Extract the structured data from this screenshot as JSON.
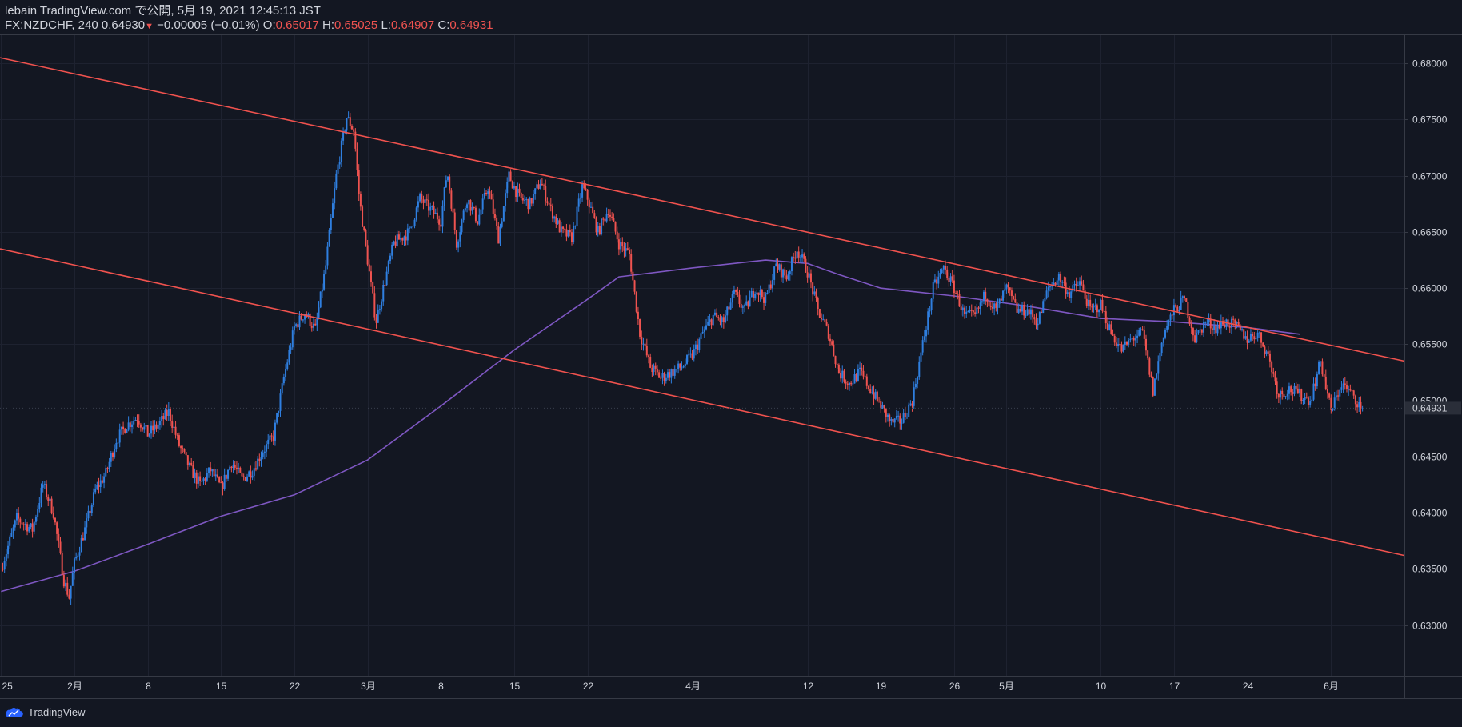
{
  "header": {
    "published": "lebain TradingView.com で公開, 5月 19, 2021 12:45:13 JST",
    "symbol": "FX:NZDCHF, 240",
    "last": "0.64930",
    "change": "−0.00005 (−0.01%)",
    "o_label": "O:",
    "o_value": "0.65017",
    "h_label": "H:",
    "h_value": "0.65025",
    "l_label": "L:",
    "l_value": "0.64907",
    "c_label": "C:",
    "c_value": "0.64931"
  },
  "brand": {
    "name": "TradingView"
  },
  "colors": {
    "background": "#131722",
    "up": "#2f7fe0",
    "down": "#ef5350",
    "channel": "#f0524e",
    "ma": "#7e57c2",
    "grid": "#1e2230"
  },
  "chart_data": {
    "type": "candlestick",
    "symbol": "FX:NZDCHF",
    "interval": "240",
    "ylim": [
      0.6255,
      0.6825
    ],
    "y_ticks": [
      "0.68000",
      "0.67500",
      "0.67000",
      "0.66500",
      "0.66000",
      "0.65500",
      "0.65000",
      "0.64500",
      "0.64000",
      "0.63500",
      "0.63000"
    ],
    "current_price_label": "0.64931",
    "current_price": 0.64931,
    "x_range_days": [
      -7.1,
      127.0
    ],
    "x_ticks": [
      {
        "label": "25",
        "day": -7
      },
      {
        "label": "2月",
        "day": 0
      },
      {
        "label": "8",
        "day": 7
      },
      {
        "label": "15",
        "day": 14
      },
      {
        "label": "22",
        "day": 21
      },
      {
        "label": "3月",
        "day": 28
      },
      {
        "label": "8",
        "day": 35
      },
      {
        "label": "15",
        "day": 42
      },
      {
        "label": "22",
        "day": 49
      },
      {
        "label": "4月",
        "day": 59
      },
      {
        "label": "12",
        "day": 70
      },
      {
        "label": "19",
        "day": 77
      },
      {
        "label": "26",
        "day": 84
      },
      {
        "label": "5月",
        "day": 89
      },
      {
        "label": "10",
        "day": 98
      },
      {
        "label": "17",
        "day": 105
      },
      {
        "label": "24",
        "day": 112
      },
      {
        "label": "6月",
        "day": 120
      }
    ],
    "close_path": [
      [
        -7,
        0.635
      ],
      [
        -5.5,
        0.6395
      ],
      [
        -4,
        0.6385
      ],
      [
        -3,
        0.6425
      ],
      [
        -2,
        0.64
      ],
      [
        -1,
        0.634
      ],
      [
        -0.5,
        0.6325
      ],
      [
        0,
        0.6355
      ],
      [
        1,
        0.6385
      ],
      [
        2,
        0.642
      ],
      [
        3,
        0.6435
      ],
      [
        4,
        0.6465
      ],
      [
        5,
        0.6478
      ],
      [
        6,
        0.6485
      ],
      [
        7,
        0.647
      ],
      [
        8,
        0.6478
      ],
      [
        9,
        0.649
      ],
      [
        10,
        0.646
      ],
      [
        11,
        0.644
      ],
      [
        12,
        0.6425
      ],
      [
        13,
        0.6438
      ],
      [
        14,
        0.6422
      ],
      [
        15,
        0.6445
      ],
      [
        16,
        0.643
      ],
      [
        17,
        0.6438
      ],
      [
        18,
        0.6455
      ],
      [
        19,
        0.6468
      ],
      [
        20,
        0.652
      ],
      [
        21,
        0.6565
      ],
      [
        22,
        0.6578
      ],
      [
        23,
        0.6563
      ],
      [
        24,
        0.662
      ],
      [
        25,
        0.67
      ],
      [
        26,
        0.6752
      ],
      [
        26.7,
        0.674
      ],
      [
        27.2,
        0.668
      ],
      [
        28,
        0.6625
      ],
      [
        28.8,
        0.657
      ],
      [
        29.5,
        0.66
      ],
      [
        30.5,
        0.664
      ],
      [
        32,
        0.665
      ],
      [
        33,
        0.668
      ],
      [
        34,
        0.667
      ],
      [
        35,
        0.666
      ],
      [
        35.6,
        0.6705
      ],
      [
        36.5,
        0.664
      ],
      [
        37.5,
        0.668
      ],
      [
        38.5,
        0.666
      ],
      [
        39.5,
        0.669
      ],
      [
        40.5,
        0.6645
      ],
      [
        41.5,
        0.67
      ],
      [
        42.5,
        0.668
      ],
      [
        43.5,
        0.6675
      ],
      [
        44.5,
        0.6695
      ],
      [
        45.5,
        0.667
      ],
      [
        46.5,
        0.665
      ],
      [
        47.5,
        0.6645
      ],
      [
        48.5,
        0.669
      ],
      [
        49,
        0.668
      ],
      [
        50,
        0.665
      ],
      [
        51,
        0.667
      ],
      [
        52,
        0.664
      ],
      [
        53,
        0.663
      ],
      [
        54,
        0.656
      ],
      [
        55,
        0.653
      ],
      [
        56,
        0.652
      ],
      [
        57,
        0.6525
      ],
      [
        58,
        0.653
      ],
      [
        59,
        0.654
      ],
      [
        60,
        0.656
      ],
      [
        61,
        0.6575
      ],
      [
        62,
        0.657
      ],
      [
        63,
        0.6595
      ],
      [
        64,
        0.658
      ],
      [
        65,
        0.66
      ],
      [
        66,
        0.659
      ],
      [
        67,
        0.662
      ],
      [
        68,
        0.661
      ],
      [
        69,
        0.6635
      ],
      [
        70,
        0.6615
      ],
      [
        71,
        0.658
      ],
      [
        72,
        0.656
      ],
      [
        73,
        0.6525
      ],
      [
        74,
        0.6515
      ],
      [
        75,
        0.6525
      ],
      [
        76,
        0.651
      ],
      [
        77,
        0.6495
      ],
      [
        78,
        0.648
      ],
      [
        79,
        0.6482
      ],
      [
        80,
        0.65
      ],
      [
        81,
        0.655
      ],
      [
        82,
        0.66
      ],
      [
        83,
        0.6618
      ],
      [
        84,
        0.66
      ],
      [
        85,
        0.6575
      ],
      [
        86,
        0.6575
      ],
      [
        87,
        0.6595
      ],
      [
        88,
        0.658
      ],
      [
        89,
        0.66
      ],
      [
        90,
        0.658
      ],
      [
        91,
        0.658
      ],
      [
        92,
        0.657
      ],
      [
        93,
        0.66
      ],
      [
        94,
        0.661
      ],
      [
        95,
        0.6595
      ],
      [
        96,
        0.6605
      ],
      [
        97,
        0.658
      ],
      [
        98,
        0.6585
      ],
      [
        99,
        0.656
      ],
      [
        100,
        0.6545
      ],
      [
        101,
        0.6555
      ],
      [
        102,
        0.656
      ],
      [
        103,
        0.6508
      ],
      [
        104,
        0.656
      ],
      [
        105,
        0.658
      ],
      [
        106,
        0.659
      ],
      [
        107,
        0.6555
      ],
      [
        108,
        0.657
      ],
      [
        109,
        0.6565
      ],
      [
        110,
        0.657
      ],
      [
        111,
        0.6565
      ],
      [
        112,
        0.6555
      ],
      [
        113,
        0.656
      ],
      [
        114,
        0.654
      ],
      [
        115,
        0.6505
      ],
      [
        116,
        0.651
      ],
      [
        117,
        0.6505
      ],
      [
        118,
        0.65
      ],
      [
        119,
        0.6535
      ],
      [
        120,
        0.649
      ],
      [
        121,
        0.6515
      ],
      [
        122,
        0.6505
      ],
      [
        123,
        0.6493
      ]
    ],
    "moving_average": {
      "label": "MA",
      "points": [
        [
          -7,
          0.633
        ],
        [
          0,
          0.6348
        ],
        [
          7,
          0.6372
        ],
        [
          14,
          0.6397
        ],
        [
          21,
          0.6416
        ],
        [
          28,
          0.6447
        ],
        [
          35,
          0.6495
        ],
        [
          42,
          0.6545
        ],
        [
          49,
          0.659
        ],
        [
          52,
          0.661
        ],
        [
          59,
          0.6618
        ],
        [
          63,
          0.6622
        ],
        [
          66,
          0.6625
        ],
        [
          70,
          0.6622
        ],
        [
          73,
          0.6612
        ],
        [
          77,
          0.66
        ],
        [
          84,
          0.6593
        ],
        [
          91,
          0.6584
        ],
        [
          98,
          0.6573
        ],
        [
          105,
          0.657
        ],
        [
          112,
          0.6565
        ],
        [
          117,
          0.6559
        ]
      ]
    },
    "channel_lines": [
      {
        "name": "upper",
        "points": [
          [
            -7.1,
            0.6805
          ],
          [
            127,
            0.6535
          ]
        ]
      },
      {
        "name": "lower",
        "points": [
          [
            -7.1,
            0.6635
          ],
          [
            127,
            0.6362
          ]
        ]
      }
    ]
  }
}
